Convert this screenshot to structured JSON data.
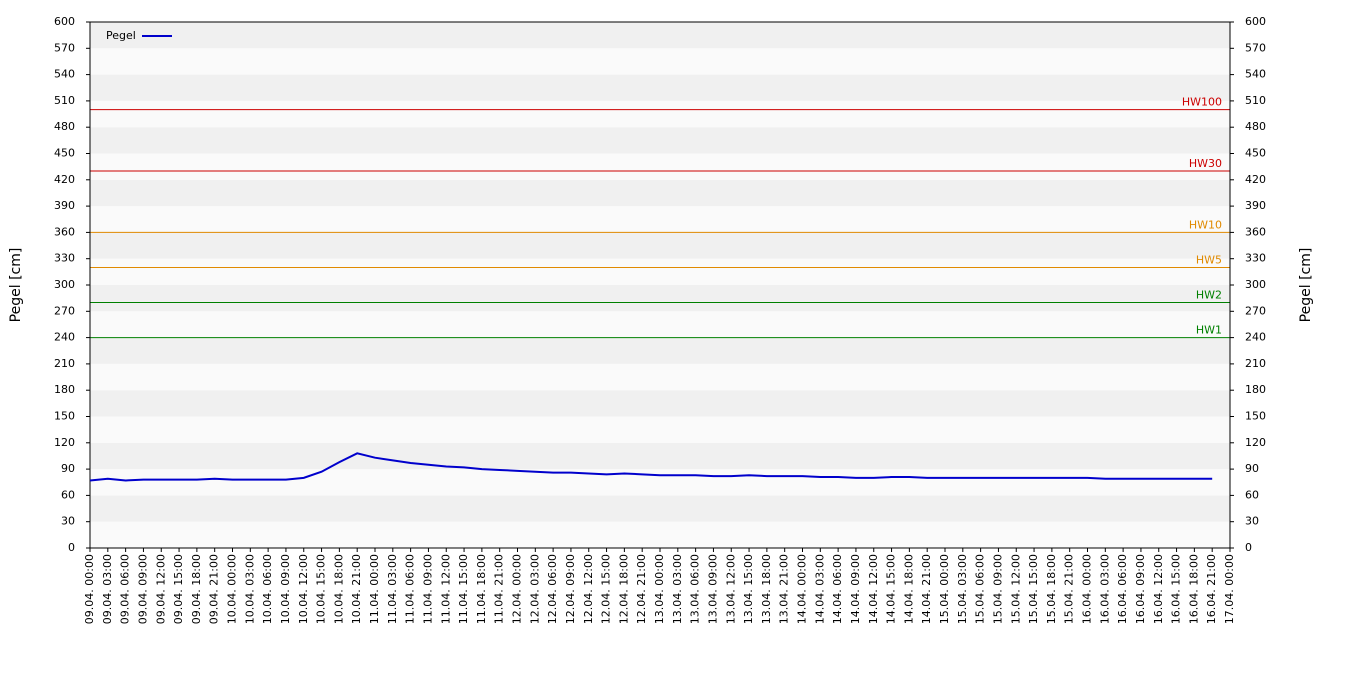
{
  "chart_data": {
    "type": "line",
    "y_label": "Pegel [cm]",
    "categories": [
      "09.04. 00:00",
      "09.04. 03:00",
      "09.04. 06:00",
      "09.04. 09:00",
      "09.04. 12:00",
      "09.04. 15:00",
      "09.04. 18:00",
      "09.04. 21:00",
      "10.04. 00:00",
      "10.04. 03:00",
      "10.04. 06:00",
      "10.04. 09:00",
      "10.04. 12:00",
      "10.04. 15:00",
      "10.04. 18:00",
      "10.04. 21:00",
      "11.04. 00:00",
      "11.04. 03:00",
      "11.04. 06:00",
      "11.04. 09:00",
      "11.04. 12:00",
      "11.04. 15:00",
      "11.04. 18:00",
      "11.04. 21:00",
      "12.04. 00:00",
      "12.04. 03:00",
      "12.04. 06:00",
      "12.04. 09:00",
      "12.04. 12:00",
      "12.04. 15:00",
      "12.04. 18:00",
      "12.04. 21:00",
      "13.04. 00:00",
      "13.04. 03:00",
      "13.04. 06:00",
      "13.04. 09:00",
      "13.04. 12:00",
      "13.04. 15:00",
      "13.04. 18:00",
      "13.04. 21:00",
      "14.04. 00:00",
      "14.04. 03:00",
      "14.04. 06:00",
      "14.04. 09:00",
      "14.04. 12:00",
      "14.04. 15:00",
      "14.04. 18:00",
      "14.04. 21:00",
      "15.04. 00:00",
      "15.04. 03:00",
      "15.04. 06:00",
      "15.04. 09:00",
      "15.04. 12:00",
      "15.04. 15:00",
      "15.04. 18:00",
      "15.04. 21:00",
      "16.04. 00:00",
      "16.04. 03:00",
      "16.04. 06:00",
      "16.04. 09:00",
      "16.04. 12:00",
      "16.04. 15:00",
      "16.04. 18:00",
      "16.04. 21:00",
      "17.04. 00:00"
    ],
    "series": [
      {
        "name": "Pegel",
        "color": "#0000cc",
        "values": [
          77,
          79,
          77,
          78,
          78,
          78,
          78,
          79,
          78,
          78,
          78,
          78,
          80,
          87,
          98,
          108,
          103,
          100,
          97,
          95,
          93,
          92,
          90,
          89,
          88,
          87,
          86,
          86,
          85,
          84,
          85,
          84,
          83,
          83,
          83,
          82,
          82,
          83,
          82,
          82,
          82,
          81,
          81,
          80,
          80,
          81,
          81,
          80,
          80,
          80,
          80,
          80,
          80,
          80,
          80,
          80,
          80,
          79,
          79,
          79,
          79,
          79,
          79,
          79,
          null
        ]
      }
    ],
    "thresholds": [
      {
        "label": "HW100",
        "value": 500,
        "color": "#cc0000"
      },
      {
        "label": "HW30",
        "value": 430,
        "color": "#cc0000"
      },
      {
        "label": "HW10",
        "value": 360,
        "color": "#e08a00"
      },
      {
        "label": "HW5",
        "value": 320,
        "color": "#e08a00"
      },
      {
        "label": "HW2",
        "value": 280,
        "color": "#008000"
      },
      {
        "label": "HW1",
        "value": 240,
        "color": "#008000"
      }
    ],
    "ylim": [
      0,
      600
    ],
    "yticks": [
      0,
      30,
      60,
      90,
      120,
      150,
      180,
      210,
      240,
      270,
      300,
      330,
      360,
      390,
      420,
      450,
      480,
      510,
      540,
      570,
      600
    ],
    "legend": "top-left"
  }
}
